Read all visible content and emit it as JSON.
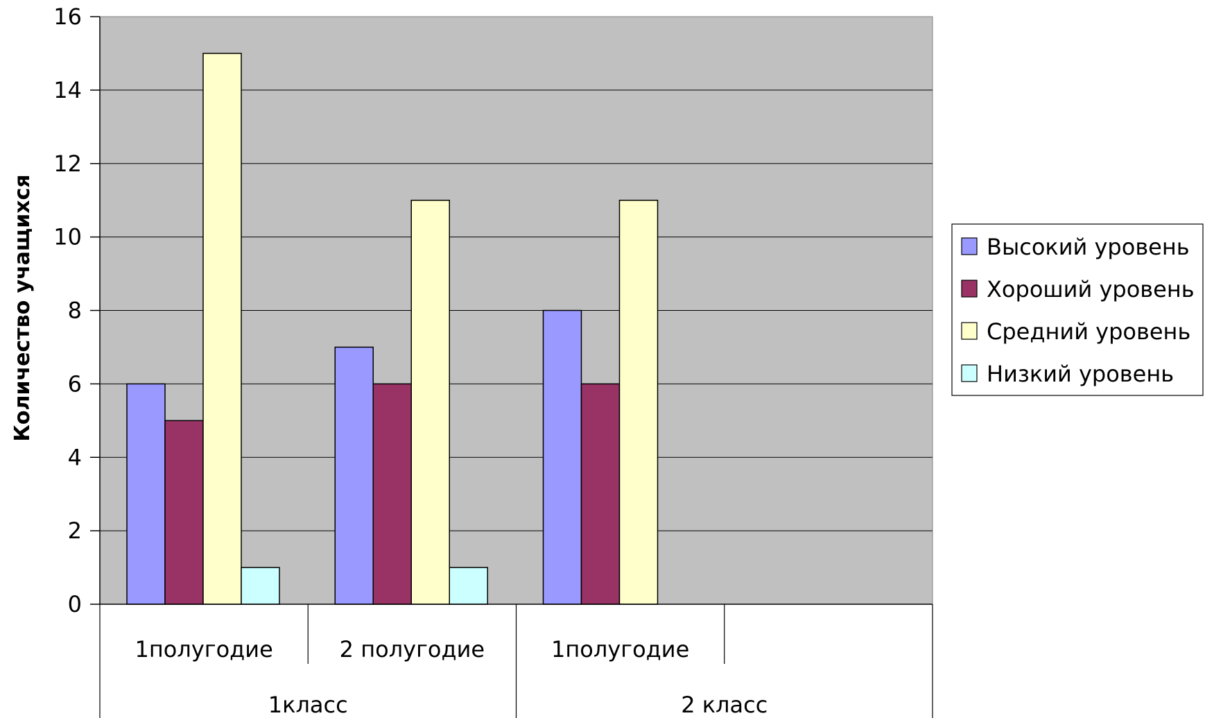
{
  "chart_data": {
    "type": "bar",
    "ylabel": "Количество учащихся",
    "ylim": [
      0,
      16
    ],
    "y_ticks": [
      "0",
      "2",
      "4",
      "6",
      "8",
      "10",
      "12",
      "14",
      "16"
    ],
    "categories": [
      "1полугодие",
      "2 полугодие",
      "1полугодие",
      ""
    ],
    "groups": [
      {
        "label": "1класс",
        "span": [
          0,
          1
        ]
      },
      {
        "label": "2 класс",
        "span": [
          2,
          3
        ]
      }
    ],
    "series": [
      {
        "name": "Высокий уровень",
        "color": "#9999ff",
        "values": [
          6,
          7,
          8,
          null
        ]
      },
      {
        "name": "Хороший уровень",
        "color": "#993366",
        "values": [
          5,
          6,
          6,
          null
        ]
      },
      {
        "name": "Средний уровень",
        "color": "#ffffcc",
        "values": [
          15,
          11,
          11,
          null
        ]
      },
      {
        "name": "Низкий уровень",
        "color": "#ccffff",
        "values": [
          1,
          1,
          null,
          null
        ]
      }
    ],
    "plot_background": "#c0c0c0",
    "grid": true,
    "legend_position": "right"
  }
}
